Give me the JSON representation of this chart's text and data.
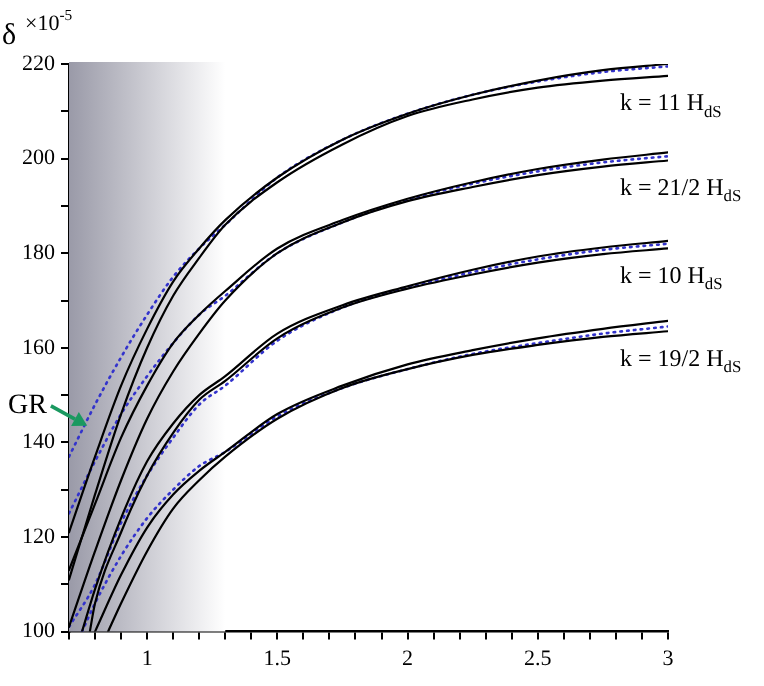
{
  "chart_data": {
    "type": "line",
    "ylabel": "δ",
    "legend": false,
    "grid": false,
    "marker": "none",
    "xlim": [
      0.7,
      3
    ],
    "ylim": [
      100,
      220
    ],
    "xticks": [
      {
        "value": 0.7,
        "label": null
      },
      {
        "value": 0.8,
        "label": null
      },
      {
        "value": 0.9,
        "label": null
      },
      1,
      {
        "value": 1.1,
        "label": null
      },
      {
        "value": 1.2,
        "label": null
      },
      {
        "value": 1.3,
        "label": null
      },
      {
        "value": 1.4,
        "label": null
      },
      1.5,
      {
        "value": 1.6,
        "label": null
      },
      {
        "value": 1.7,
        "label": null
      },
      {
        "value": 1.8,
        "label": null
      },
      {
        "value": 1.9,
        "label": null
      },
      2,
      {
        "value": 2.1,
        "label": null
      },
      {
        "value": 2.2,
        "label": null
      },
      {
        "value": 2.3,
        "label": null
      },
      {
        "value": 2.4,
        "label": null
      },
      2.5,
      {
        "value": 2.6,
        "label": null
      },
      {
        "value": 2.7,
        "label": null
      },
      {
        "value": 2.8,
        "label": null
      },
      {
        "value": 2.9,
        "label": null
      },
      3
    ],
    "yticks": [
      100,
      {
        "value": 110,
        "label": null
      },
      120,
      {
        "value": 130,
        "label": null
      },
      140,
      {
        "value": 150,
        "label": null
      },
      160,
      {
        "value": 170,
        "label": null
      },
      180,
      {
        "value": 190,
        "label": null
      },
      200,
      {
        "value": 210,
        "label": null
      },
      220
    ],
    "bands": [
      {
        "axis": "x",
        "from": 0.7,
        "to": 1.3,
        "color": "#9a9aa8"
      }
    ],
    "series": [
      {
        "color": "#000000",
        "line_style": "solid",
        "x": [
          0.7,
          0.8,
          0.9,
          1.0,
          1.1,
          1.2,
          1.3,
          1.5,
          1.75,
          2,
          2.25,
          2.5,
          2.75,
          3
        ],
        "values": [
          121,
          137,
          152,
          164,
          174,
          181,
          187,
          196,
          204,
          209.5,
          213.5,
          216.5,
          218.7,
          220
        ]
      },
      {
        "color": "#000000",
        "line_style": "solid",
        "x": [
          0.7,
          0.8,
          0.9,
          1.0,
          1.1,
          1.2,
          1.3,
          1.5,
          1.75,
          2,
          2.25,
          2.5,
          2.75,
          3
        ],
        "values": [
          111,
          129,
          146,
          160,
          171,
          179,
          186,
          195,
          203,
          209,
          212.5,
          215,
          216.5,
          217.5
        ]
      },
      {
        "color": "#3333cc",
        "line_style": "dotted",
        "x": [
          0.7,
          0.8,
          0.9,
          1.0,
          1.1,
          1.2,
          1.3,
          1.5,
          1.75,
          2,
          2.25,
          2.5,
          2.75,
          3
        ],
        "values": [
          137,
          148,
          158,
          167,
          175,
          181,
          186,
          196,
          204,
          209.5,
          213.5,
          216.3,
          218.3,
          219.5
        ]
      },
      {
        "color": "#000000",
        "line_style": "solid",
        "x": [
          0.7,
          0.8,
          0.9,
          1.0,
          1.1,
          1.2,
          1.3,
          1.5,
          1.75,
          2,
          2.25,
          2.5,
          2.75,
          3
        ],
        "values": [
          113,
          127,
          141,
          152,
          161,
          167,
          172,
          181,
          187,
          191.5,
          195,
          197.8,
          199.8,
          201.3
        ]
      },
      {
        "color": "#000000",
        "line_style": "solid",
        "x": [
          0.7,
          0.8,
          0.9,
          1.0,
          1.1,
          1.2,
          1.3,
          1.5,
          1.75,
          2,
          2.25,
          2.5,
          2.75,
          3
        ],
        "values": [
          101,
          117,
          132,
          145,
          155,
          163,
          170,
          180,
          186.5,
          191,
          194,
          196.5,
          198.3,
          199.6
        ]
      },
      {
        "color": "#3333cc",
        "line_style": "dotted",
        "x": [
          0.7,
          0.8,
          0.9,
          1.0,
          1.1,
          1.2,
          1.3,
          1.5,
          1.75,
          2,
          2.25,
          2.5,
          2.75,
          3
        ],
        "values": [
          125,
          136,
          146,
          154,
          161,
          167,
          171,
          180,
          186.5,
          191.3,
          194.7,
          197.3,
          199.2,
          200.5
        ]
      },
      {
        "color": "#000000",
        "line_style": "solid",
        "x": [
          0.75,
          0.8,
          0.9,
          1.0,
          1.1,
          1.2,
          1.3,
          1.5,
          1.75,
          2,
          2.25,
          2.5,
          2.75,
          3
        ],
        "values": [
          100,
          109,
          124,
          136,
          144,
          150,
          154,
          163,
          169,
          173,
          176.5,
          179.3,
          181.2,
          182.6
        ]
      },
      {
        "color": "#000000",
        "line_style": "solid",
        "x": [
          0.78,
          0.8,
          0.9,
          1.0,
          1.1,
          1.2,
          1.3,
          1.5,
          1.75,
          2,
          2.25,
          2.5,
          2.75,
          3
        ],
        "values": [
          100,
          106,
          121,
          133,
          142,
          149,
          153,
          162,
          168.5,
          172.5,
          175.5,
          178,
          179.8,
          181
        ]
      },
      {
        "color": "#3333cc",
        "line_style": "dotted",
        "x": [
          0.7,
          0.8,
          0.9,
          1.0,
          1.1,
          1.2,
          1.3,
          1.5,
          1.75,
          2,
          2.25,
          2.5,
          2.75,
          3
        ],
        "values": [
          101,
          110,
          123,
          133,
          141,
          148,
          152,
          161.5,
          168.5,
          172.7,
          176,
          178.7,
          180.7,
          182
        ]
      },
      {
        "color": "#000000",
        "line_style": "solid",
        "x": [
          0.8,
          0.9,
          1.0,
          1.1,
          1.2,
          1.3,
          1.5,
          1.75,
          2,
          2.25,
          2.5,
          2.75,
          3
        ],
        "values": [
          100,
          112,
          122,
          129,
          134,
          138,
          146,
          152,
          156.5,
          159.5,
          162,
          164,
          165.7
        ]
      },
      {
        "color": "#000000",
        "line_style": "solid",
        "x": [
          0.85,
          0.9,
          1.0,
          1.1,
          1.2,
          1.3,
          1.5,
          1.75,
          2,
          2.25,
          2.5,
          2.75,
          3
        ],
        "values": [
          100,
          106,
          117,
          126,
          132,
          137,
          145,
          151.5,
          155.5,
          158.5,
          160.6,
          162.3,
          163.5
        ]
      },
      {
        "color": "#3333cc",
        "line_style": "dotted",
        "x": [
          0.75,
          0.8,
          0.9,
          1.0,
          1.1,
          1.2,
          1.3,
          1.5,
          1.75,
          2,
          2.25,
          2.5,
          2.75,
          3
        ],
        "values": [
          100,
          106,
          116,
          124,
          130,
          135,
          138,
          145.5,
          151.5,
          155.5,
          158.7,
          161,
          163,
          164.5
        ]
      }
    ],
    "annotations": [
      "×10$^{-5}$",
      {
        "text": "GR",
        "x": 0.77,
        "y": 143.5
      },
      "k = 11 H$_{dS}$",
      "k = 21/2 H$_{dS}$",
      "k = 10 H$_{dS}$",
      "k = 19/2 H$_{dS}$"
    ]
  }
}
